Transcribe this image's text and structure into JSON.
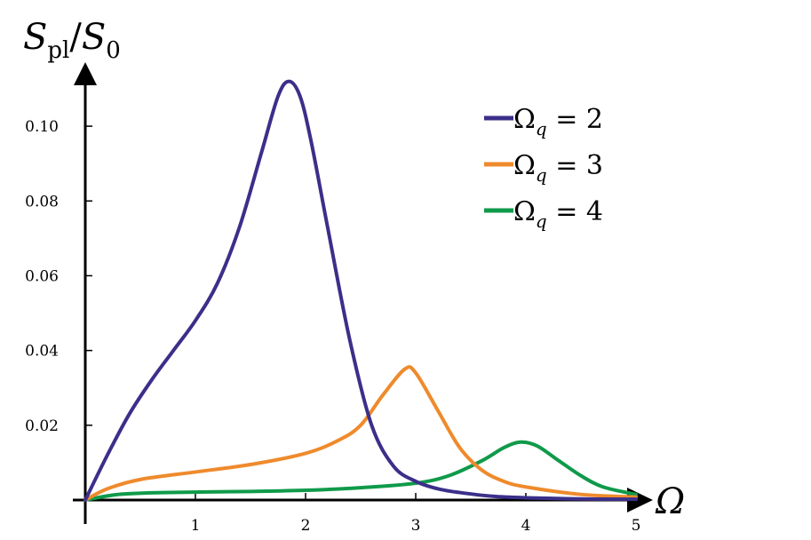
{
  "chart_data": {
    "type": "line",
    "xlabel": "Ω",
    "ylabel": {
      "main": "S",
      "sub": "pl",
      "sep": "/",
      "main2": "S",
      "sub2": "0"
    },
    "xlim": [
      0,
      5
    ],
    "ylim": [
      0,
      0.11
    ],
    "x_ticks": [
      "1",
      "2",
      "3",
      "4",
      "5"
    ],
    "y_ticks": [
      "0.02",
      "0.04",
      "0.06",
      "0.08",
      "0.10"
    ],
    "grid": false,
    "legend_position": "top-right",
    "series": [
      {
        "name": "Ω_q = 2",
        "legend": {
          "symbol": "Ω",
          "sub": "q",
          "rest": " = 2"
        },
        "color": "#3b2f8a",
        "points": [
          [
            0,
            0
          ],
          [
            0.2,
            0.012
          ],
          [
            0.4,
            0.023
          ],
          [
            0.6,
            0.032
          ],
          [
            0.8,
            0.04
          ],
          [
            1.0,
            0.048
          ],
          [
            1.2,
            0.058
          ],
          [
            1.4,
            0.073
          ],
          [
            1.6,
            0.093
          ],
          [
            1.75,
            0.108
          ],
          [
            1.85,
            0.112
          ],
          [
            1.95,
            0.108
          ],
          [
            2.05,
            0.096
          ],
          [
            2.2,
            0.073
          ],
          [
            2.4,
            0.043
          ],
          [
            2.6,
            0.02
          ],
          [
            2.8,
            0.009
          ],
          [
            3.0,
            0.005
          ],
          [
            3.2,
            0.003
          ],
          [
            3.4,
            0.002
          ],
          [
            3.7,
            0.001
          ],
          [
            4.0,
            0.0006
          ],
          [
            4.5,
            0.0003
          ],
          [
            5.0,
            0.0002
          ]
        ]
      },
      {
        "name": "Ω_q = 3",
        "legend": {
          "symbol": "Ω",
          "sub": "q",
          "rest": " = 3"
        },
        "color": "#ef8a2c",
        "points": [
          [
            0,
            0
          ],
          [
            0.2,
            0.003
          ],
          [
            0.5,
            0.0055
          ],
          [
            1.0,
            0.0075
          ],
          [
            1.5,
            0.0095
          ],
          [
            2.0,
            0.0125
          ],
          [
            2.3,
            0.016
          ],
          [
            2.5,
            0.02
          ],
          [
            2.7,
            0.028
          ],
          [
            2.9,
            0.035
          ],
          [
            3.0,
            0.034
          ],
          [
            3.2,
            0.024
          ],
          [
            3.4,
            0.014
          ],
          [
            3.6,
            0.008
          ],
          [
            3.8,
            0.005
          ],
          [
            4.0,
            0.0035
          ],
          [
            4.5,
            0.0015
          ],
          [
            5.0,
            0.0008
          ]
        ]
      },
      {
        "name": "Ω_q = 4",
        "legend": {
          "symbol": "Ω",
          "sub": "q",
          "rest": " = 4"
        },
        "color": "#0f9a4a",
        "points": [
          [
            0,
            0
          ],
          [
            0.3,
            0.0015
          ],
          [
            0.7,
            0.002
          ],
          [
            1.5,
            0.0023
          ],
          [
            2.0,
            0.0026
          ],
          [
            2.5,
            0.0033
          ],
          [
            3.0,
            0.0045
          ],
          [
            3.3,
            0.0065
          ],
          [
            3.6,
            0.0105
          ],
          [
            3.8,
            0.014
          ],
          [
            3.95,
            0.0155
          ],
          [
            4.1,
            0.0145
          ],
          [
            4.3,
            0.0105
          ],
          [
            4.5,
            0.0065
          ],
          [
            4.7,
            0.0035
          ],
          [
            5.0,
            0.0015
          ]
        ]
      }
    ]
  }
}
